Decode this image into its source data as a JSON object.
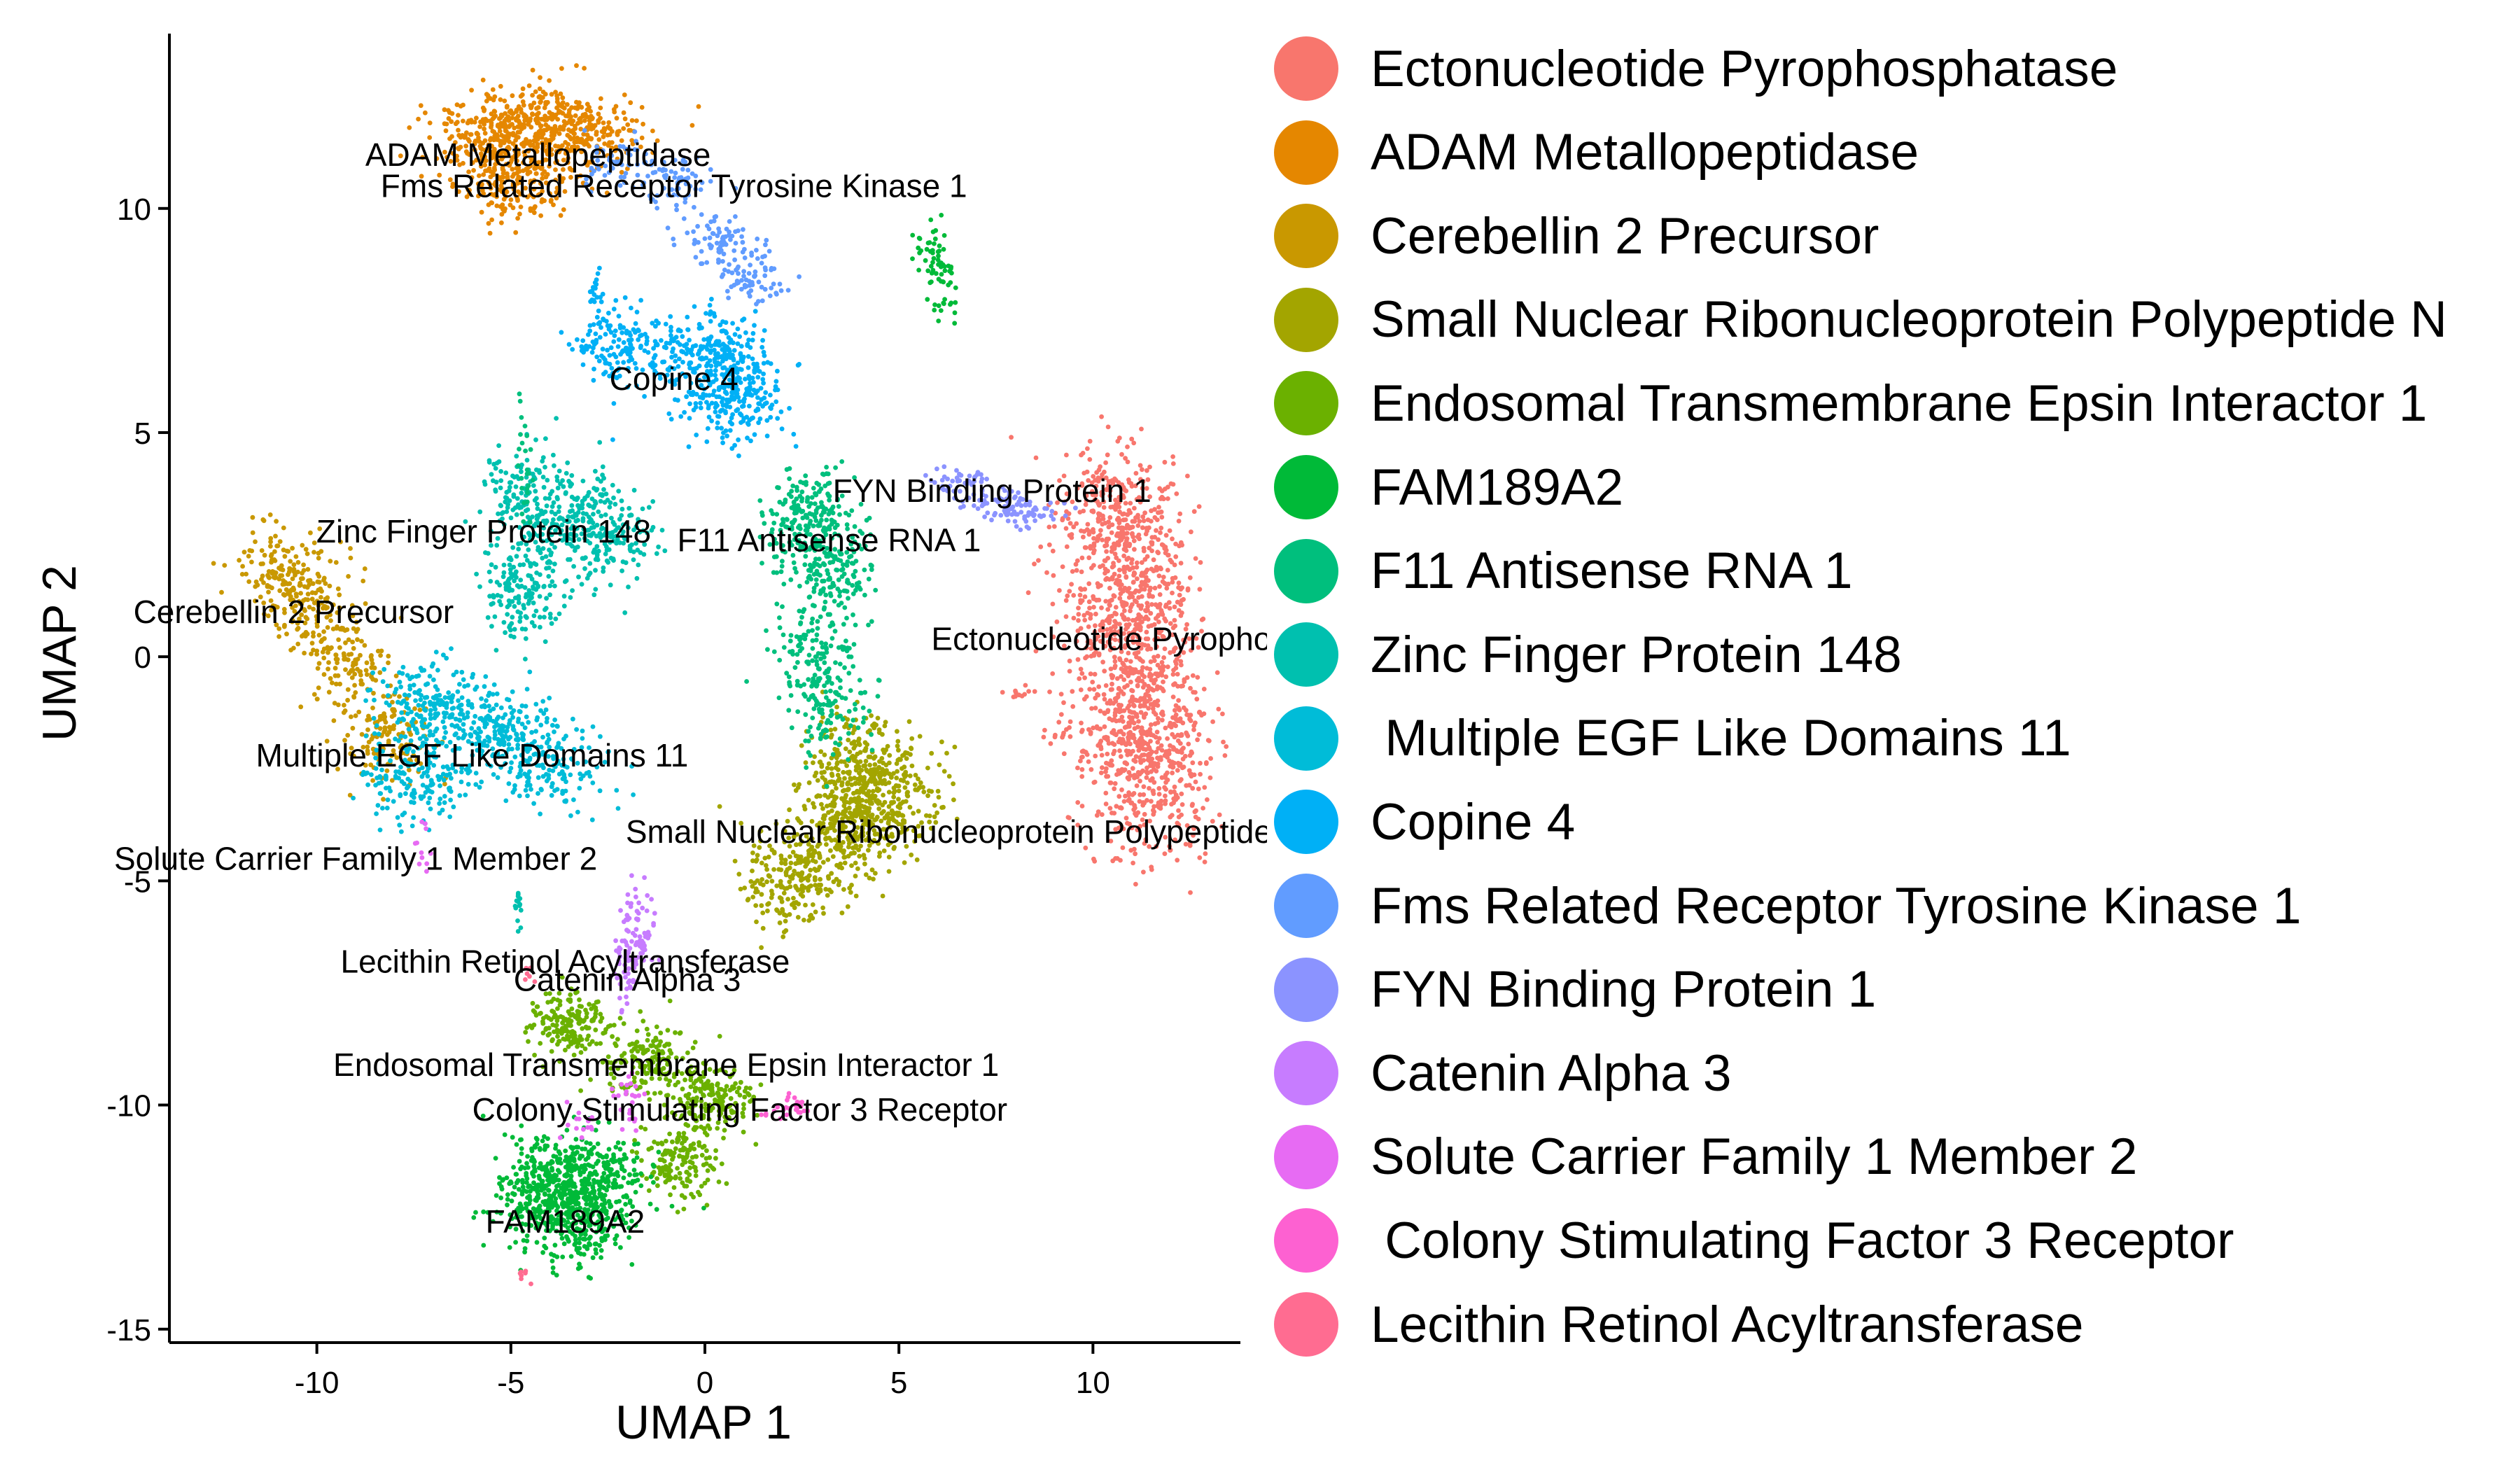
{
  "chart_data": {
    "type": "scatter",
    "xlabel": "UMAP 1",
    "ylabel": "UMAP 2",
    "xlim": [
      -13.8,
      13.8
    ],
    "ylim": [
      -15.3,
      13.9
    ],
    "xticks": [
      -10,
      -5,
      0,
      5,
      10
    ],
    "yticks": [
      -15,
      -10,
      -5,
      0,
      5,
      10
    ],
    "grid": false,
    "legend_position": "right",
    "series": [
      {
        "name": "Ectonucleotide Pyrophosphatase",
        "color": "#F8766D"
      },
      {
        "name": "ADAM Metallopeptidase",
        "color": "#E58700"
      },
      {
        "name": "Cerebellin 2 Precursor",
        "color": "#C99800"
      },
      {
        "name": "Small Nuclear Ribonucleoprotein Polypeptide N",
        "color": "#A3A500"
      },
      {
        "name": "Endosomal Transmembrane Epsin Interactor 1",
        "color": "#6BB100"
      },
      {
        "name": "FAM189A2",
        "color": "#00BA38"
      },
      {
        "name": "F11 Antisense RNA 1",
        "color": "#00BF7D"
      },
      {
        "name": "Zinc Finger Protein 148",
        "color": "#00C0AF"
      },
      {
        "name": " Multiple EGF Like Domains 11",
        "color": "#00BCD8"
      },
      {
        "name": "Copine 4",
        "color": "#00B0F6"
      },
      {
        "name": "Fms Related Receptor Tyrosine Kinase 1",
        "color": "#619CFF"
      },
      {
        "name": "FYN Binding Protein 1",
        "color": "#8B93FF"
      },
      {
        "name": "Catenin Alpha 3",
        "color": "#C77CFF"
      },
      {
        "name": "Solute Carrier Family 1 Member 2",
        "color": "#E76BF3"
      },
      {
        "name": " Colony Stimulating Factor 3 Receptor",
        "color": "#FD61D1"
      },
      {
        "name": "Lecithin Retinol Acyltransferase",
        "color": "#FF6C91"
      }
    ],
    "clusters": [
      {
        "series": 0,
        "centers": [
          [
            10.6,
            3.0
          ],
          [
            11.0,
            1.0
          ],
          [
            11.2,
            -1.0
          ],
          [
            11.4,
            -2.6
          ]
        ],
        "sx": 0.8,
        "sy": 0.9,
        "n": 1500
      },
      {
        "series": 1,
        "centers": [
          [
            -5.5,
            11.6
          ],
          [
            -4.3,
            11.9
          ],
          [
            -3.0,
            11.7
          ],
          [
            -5.0,
            10.6
          ]
        ],
        "sx": 0.75,
        "sy": 0.45,
        "n": 800
      },
      {
        "series": 2,
        "centers": [
          [
            -11.0,
            1.9
          ],
          [
            -10.2,
            1.2
          ],
          [
            -9.2,
            -0.2
          ],
          [
            -8.2,
            -1.8
          ]
        ],
        "sx": 0.55,
        "sy": 0.5,
        "n": 500
      },
      {
        "series": 3,
        "centers": [
          [
            4.0,
            -2.5
          ],
          [
            3.5,
            -3.8
          ],
          [
            2.3,
            -5.0
          ],
          [
            4.8,
            -3.2
          ]
        ],
        "sx": 0.65,
        "sy": 0.6,
        "n": 900
      },
      {
        "series": 4,
        "centers": [
          [
            -3.5,
            -8.2
          ],
          [
            -1.5,
            -9.0
          ],
          [
            0.2,
            -9.9
          ],
          [
            -0.6,
            -11.2
          ]
        ],
        "sx": 0.5,
        "sy": 0.4,
        "n": 700
      },
      {
        "series": 5,
        "centers": [
          [
            -3.6,
            -11.6
          ],
          [
            -3.3,
            -12.6
          ],
          [
            -4.3,
            -12.0
          ],
          [
            -2.6,
            -11.8
          ]
        ],
        "sx": 0.6,
        "sy": 0.55,
        "n": 800
      },
      {
        "series": 6,
        "centers": [
          [
            2.5,
            2.8
          ],
          [
            3.3,
            2.0
          ],
          [
            2.8,
            3.3
          ],
          [
            2.9,
            0.2
          ],
          [
            3.1,
            -1.2
          ]
        ],
        "sx": 0.55,
        "sy": 0.5,
        "n": 600
      },
      {
        "series": 7,
        "centers": [
          [
            -4.6,
            3.5
          ],
          [
            -3.5,
            3.0
          ],
          [
            -2.4,
            2.7
          ],
          [
            -4.7,
            1.5
          ]
        ],
        "sx": 0.55,
        "sy": 0.55,
        "n": 600
      },
      {
        "series": 8,
        "centers": [
          [
            -7.0,
            -1.2
          ],
          [
            -5.5,
            -1.7
          ],
          [
            -4.0,
            -2.4
          ],
          [
            -7.5,
            -2.8
          ]
        ],
        "sx": 0.75,
        "sy": 0.5,
        "n": 700
      },
      {
        "series": 9,
        "centers": [
          [
            -2.0,
            7.0
          ],
          [
            0.0,
            6.8
          ],
          [
            0.8,
            5.6
          ],
          [
            0.6,
            6.4
          ]
        ],
        "sx": 0.65,
        "sy": 0.45,
        "n": 600
      },
      {
        "series": 10,
        "centers": [
          [
            -2.2,
            11.0
          ],
          [
            -0.8,
            10.6
          ],
          [
            0.4,
            9.3
          ],
          [
            1.2,
            8.5
          ]
        ],
        "sx": 0.45,
        "sy": 0.3,
        "n": 260
      },
      {
        "series": 11,
        "centers": [
          [
            6.5,
            3.9
          ],
          [
            7.5,
            3.5
          ],
          [
            8.3,
            3.2
          ]
        ],
        "sx": 0.5,
        "sy": 0.16,
        "n": 140
      },
      {
        "series": 12,
        "centers": [
          [
            -1.7,
            -6.0
          ],
          [
            -2.0,
            -7.0
          ],
          [
            -1.9,
            -6.4
          ]
        ],
        "sx": 0.22,
        "sy": 0.45,
        "n": 110
      },
      {
        "series": 13,
        "centers": [
          [
            -7.2,
            -4.4
          ],
          [
            -3.3,
            -10.3
          ],
          [
            -1.9,
            -9.9
          ]
        ],
        "sx": 0.22,
        "sy": 0.35,
        "n": 50
      },
      {
        "series": 14,
        "centers": [
          [
            2.3,
            -10.0
          ],
          [
            1.8,
            -10.2
          ]
        ],
        "sx": 0.25,
        "sy": 0.12,
        "n": 25
      },
      {
        "series": 15,
        "centers": [
          [
            -4.7,
            -13.7
          ],
          [
            -4.6,
            -7.0
          ]
        ],
        "sx": 0.12,
        "sy": 0.12,
        "n": 14
      },
      {
        "series": 5,
        "centers": [
          [
            5.8,
            9.0
          ],
          [
            6.2,
            8.2
          ]
        ],
        "sx": 0.2,
        "sy": 0.35,
        "n": 70
      },
      {
        "series": 7,
        "centers": [
          [
            -4.8,
            -5.6
          ]
        ],
        "sx": 0.06,
        "sy": 0.3,
        "n": 14
      },
      {
        "series": 0,
        "centers": [
          [
            8.0,
            -0.8
          ],
          [
            9.2,
            -1.7
          ]
        ],
        "sx": 0.25,
        "sy": 0.1,
        "n": 22
      },
      {
        "series": 6,
        "centers": [
          [
            -4.7,
            4.9
          ],
          [
            -4.6,
            4.0
          ]
        ],
        "sx": 0.08,
        "sy": 0.5,
        "n": 25
      },
      {
        "series": 9,
        "centers": [
          [
            -2.8,
            7.9
          ]
        ],
        "sx": 0.1,
        "sy": 0.4,
        "n": 20
      }
    ],
    "annotations": [
      {
        "text": "ADAM Metallopeptidase",
        "x": -4.3,
        "y": 11.2
      },
      {
        "text": "Fms Related Receptor Tyrosine Kinase 1",
        "x": -0.8,
        "y": 10.5
      },
      {
        "text": "Copine 4",
        "x": -0.8,
        "y": 6.2
      },
      {
        "text": "FYN Binding Protein 1",
        "x": 7.4,
        "y": 3.7
      },
      {
        "text": "Zinc Finger Protein 148",
        "x": -5.7,
        "y": 2.8
      },
      {
        "text": "F11 Antisense RNA 1",
        "x": 3.2,
        "y": 2.6
      },
      {
        "text": "Cerebellin 2 Precursor",
        "x": -10.6,
        "y": 1.0
      },
      {
        "text": "Ectonucleotide Pyrophosphatase",
        "x": 11.9,
        "y": 0.4
      },
      {
        "text": "Multiple EGF Like Domains 11",
        "x": -6.0,
        "y": -2.2
      },
      {
        "text": "Small Nuclear Ribonucleoprotein Polypeptide N",
        "x": 6.7,
        "y": -3.9
      },
      {
        "text": "Solute Carrier Family 1 Member 2",
        "x": -9.0,
        "y": -4.5
      },
      {
        "text": "Lecithin Retinol Acyltransferase",
        "x": -3.6,
        "y": -6.8
      },
      {
        "text": "Catenin Alpha 3",
        "x": -2.0,
        "y": -7.2
      },
      {
        "text": "Endosomal Transmembrane Epsin Interactor 1",
        "x": -1.0,
        "y": -9.1
      },
      {
        "text": "Colony Stimulating Factor 3 Receptor",
        "x": 0.9,
        "y": -10.1
      },
      {
        "text": "FAM189A2",
        "x": -3.6,
        "y": -12.6
      }
    ]
  }
}
